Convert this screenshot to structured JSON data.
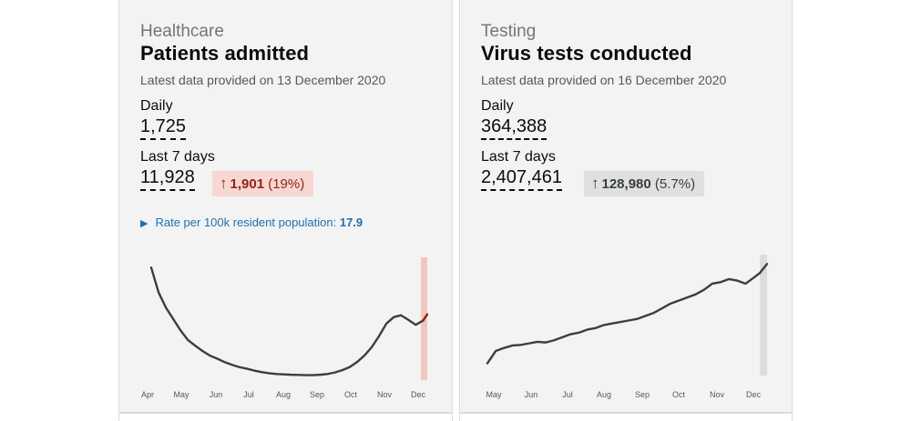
{
  "cards": [
    {
      "category": "Healthcare",
      "title": "Patients admitted",
      "latest": "Latest data provided on 13 December 2020",
      "daily_label": "Daily",
      "daily_value": "1,725",
      "week_label": "Last 7 days",
      "week_value": "11,928",
      "change": {
        "arrow": "↑",
        "value": "1,901",
        "percent": "(19%)",
        "color": "#942514",
        "background": "#f6d7d2"
      },
      "rate": {
        "toggle_icon": "triangle-right-icon",
        "label": "Rate per 100k resident population:",
        "value": "17.9"
      }
    },
    {
      "category": "Testing",
      "title": "Virus tests conducted",
      "latest": "Latest data provided on 16 December 2020",
      "daily_label": "Daily",
      "daily_value": "364,388",
      "week_label": "Last 7 days",
      "week_value": "2,407,461",
      "change": {
        "arrow": "↑",
        "value": "128,980",
        "percent": "(5.7%)",
        "color": "#383f43",
        "background": "#e0e0e0"
      }
    }
  ],
  "chart_data": [
    {
      "type": "line",
      "tick_labels": [
        "Apr",
        "May",
        "Jun",
        "Jul",
        "Aug",
        "Sep",
        "Oct",
        "Nov",
        "Dec"
      ],
      "x": [
        "2020-03-25",
        "2020-04-01",
        "2020-04-08",
        "2020-04-15",
        "2020-04-22",
        "2020-04-29",
        "2020-05-06",
        "2020-05-13",
        "2020-05-20",
        "2020-05-27",
        "2020-06-03",
        "2020-06-10",
        "2020-06-17",
        "2020-06-24",
        "2020-07-01",
        "2020-07-08",
        "2020-07-15",
        "2020-07-22",
        "2020-07-29",
        "2020-08-05",
        "2020-08-12",
        "2020-08-19",
        "2020-08-26",
        "2020-09-02",
        "2020-09-09",
        "2020-09-16",
        "2020-09-23",
        "2020-09-30",
        "2020-10-07",
        "2020-10-14",
        "2020-10-21",
        "2020-10-28",
        "2020-11-04",
        "2020-11-11",
        "2020-11-18",
        "2020-11-25",
        "2020-12-02",
        "2020-12-09",
        "2020-12-13"
      ],
      "values": [
        2950,
        2300,
        1900,
        1600,
        1300,
        1050,
        900,
        760,
        640,
        560,
        470,
        400,
        340,
        300,
        250,
        210,
        180,
        160,
        150,
        140,
        135,
        130,
        130,
        140,
        160,
        200,
        260,
        340,
        470,
        640,
        860,
        1150,
        1480,
        1650,
        1700,
        1580,
        1450,
        1560,
        1725
      ],
      "highlight_range": [
        "2020-12-07",
        "2020-12-13"
      ],
      "line_color": "#383f43",
      "highlight_color": "#942514",
      "highlight_fill": "#f2c6bf",
      "ylim": [
        0,
        3100
      ]
    },
    {
      "type": "line",
      "tick_labels": [
        "May",
        "Jun",
        "Jul",
        "Aug",
        "Sep",
        "Oct",
        "Nov",
        "Dec"
      ],
      "x": [
        "2020-04-25",
        "2020-05-02",
        "2020-05-09",
        "2020-05-16",
        "2020-05-23",
        "2020-05-30",
        "2020-06-06",
        "2020-06-13",
        "2020-06-20",
        "2020-06-27",
        "2020-07-04",
        "2020-07-11",
        "2020-07-18",
        "2020-07-25",
        "2020-08-01",
        "2020-08-08",
        "2020-08-15",
        "2020-08-22",
        "2020-08-29",
        "2020-09-05",
        "2020-09-12",
        "2020-09-19",
        "2020-09-26",
        "2020-10-03",
        "2020-10-10",
        "2020-10-17",
        "2020-10-24",
        "2020-10-31",
        "2020-11-07",
        "2020-11-14",
        "2020-11-21",
        "2020-11-28",
        "2020-12-05",
        "2020-12-10",
        "2020-12-16"
      ],
      "values": [
        40000,
        80000,
        90000,
        98000,
        100000,
        105000,
        110000,
        108000,
        115000,
        125000,
        135000,
        140000,
        150000,
        155000,
        165000,
        170000,
        175000,
        180000,
        185000,
        195000,
        205000,
        220000,
        235000,
        245000,
        255000,
        265000,
        280000,
        300000,
        305000,
        315000,
        310000,
        300000,
        320000,
        335000,
        364388
      ],
      "highlight_range": [
        "2020-12-10",
        "2020-12-16"
      ],
      "line_color": "#383f43",
      "highlight_fill": "#dcdcdc",
      "ylim": [
        0,
        380000
      ]
    }
  ]
}
